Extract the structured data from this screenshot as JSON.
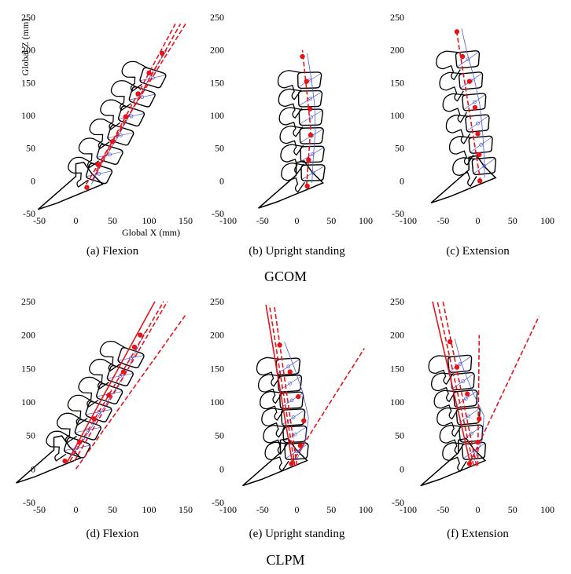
{
  "figure": {
    "group_labels": [
      "GCOM",
      "CLPM"
    ],
    "axis_labels": {
      "x": "Global X (mm)",
      "z": "Global Z (mm)"
    }
  },
  "colors": {
    "spine": "#000000",
    "fit": "#e4141b",
    "aux": "#4a5bd6"
  },
  "chart_data": [
    {
      "id": "a",
      "type": "line",
      "caption": "(a) Flexion",
      "group": "GCOM",
      "posture": "flexion",
      "xlim": [
        -50,
        150
      ],
      "ylim": [
        -50,
        250
      ],
      "xticks": [
        -50,
        0,
        50,
        100,
        150
      ],
      "yticks": [
        -50,
        0,
        50,
        100,
        150,
        200,
        250
      ],
      "centroids": [
        [
          15,
          -10
        ],
        [
          30,
          25
        ],
        [
          50,
          60
        ],
        [
          68,
          98
        ],
        [
          85,
          133
        ],
        [
          100,
          165
        ],
        [
          118,
          195
        ]
      ],
      "fit_lines": [
        {
          "style": "dashed",
          "x": [
            14,
            150
          ],
          "y": [
            -5,
            240
          ]
        },
        {
          "style": "dashed",
          "x": [
            22,
            143
          ],
          "y": [
            0,
            240
          ]
        },
        {
          "style": "dashed",
          "x": [
            28,
            136
          ],
          "y": [
            15,
            240
          ]
        }
      ]
    },
    {
      "id": "b",
      "type": "line",
      "caption": "(b) Upright standing",
      "group": "GCOM",
      "posture": "upright",
      "xlim": [
        -100,
        100
      ],
      "ylim": [
        -50,
        250
      ],
      "xticks": [
        -100,
        -50,
        0,
        50,
        100
      ],
      "yticks": [
        -50,
        0,
        50,
        100,
        150,
        200,
        250
      ],
      "centroids": [
        [
          15,
          -8
        ],
        [
          17,
          32
        ],
        [
          20,
          70
        ],
        [
          19,
          110
        ],
        [
          14,
          152
        ],
        [
          8,
          190
        ]
      ],
      "fit_lines": [
        {
          "style": "dashed",
          "x": [
            14,
            20,
            8
          ],
          "y": [
            -8,
            80,
            200
          ]
        }
      ]
    },
    {
      "id": "c",
      "type": "line",
      "caption": "(c) Extension",
      "group": "GCOM",
      "posture": "extension",
      "xlim": [
        -100,
        100
      ],
      "ylim": [
        -50,
        250
      ],
      "xticks": [
        -100,
        -50,
        0,
        50,
        100
      ],
      "yticks": [
        -50,
        0,
        50,
        100,
        150,
        200,
        250
      ],
      "centroids": [
        [
          3,
          0
        ],
        [
          2,
          40
        ],
        [
          0,
          72
        ],
        [
          -4,
          112
        ],
        [
          -12,
          152
        ],
        [
          -22,
          190
        ],
        [
          -30,
          228
        ]
      ],
      "fit_lines": [
        {
          "style": "dashed",
          "x": [
            4,
            -31
          ],
          "y": [
            -2,
            232
          ]
        }
      ]
    },
    {
      "id": "d",
      "type": "line",
      "caption": "(d) Flexion",
      "group": "CLPM",
      "posture": "flexion",
      "xlim": [
        -50,
        150
      ],
      "ylim": [
        -50,
        250
      ],
      "xticks": [
        -50,
        0,
        50,
        100,
        150
      ],
      "yticks": [
        -50,
        0,
        50,
        100,
        150,
        200,
        250
      ],
      "centroids": [
        [
          -15,
          12
        ],
        [
          5,
          40
        ],
        [
          25,
          75
        ],
        [
          45,
          110
        ],
        [
          65,
          145
        ],
        [
          80,
          182
        ],
        [
          88,
          200
        ]
      ],
      "fit_lines": [
        {
          "style": "solid",
          "x": [
            -12,
            108
          ],
          "y": [
            10,
            250
          ]
        },
        {
          "style": "dashed",
          "x": [
            -8,
            120
          ],
          "y": [
            12,
            250
          ]
        },
        {
          "style": "dashed",
          "x": [
            -2,
            125
          ],
          "y": [
            12,
            250
          ]
        },
        {
          "style": "dashed",
          "x": [
            0,
            150
          ],
          "y": [
            0,
            230
          ]
        }
      ]
    },
    {
      "id": "e",
      "type": "line",
      "caption": "(e) Upright standing",
      "group": "CLPM",
      "posture": "upright",
      "xlim": [
        -100,
        100
      ],
      "ylim": [
        -50,
        250
      ],
      "xticks": [
        -100,
        -50,
        0,
        50,
        100
      ],
      "yticks": [
        -50,
        0,
        50,
        100,
        150,
        200,
        250
      ],
      "centroids": [
        [
          -8,
          8
        ],
        [
          5,
          35
        ],
        [
          10,
          72
        ],
        [
          2,
          108
        ],
        [
          -10,
          145
        ],
        [
          -25,
          185
        ]
      ],
      "fit_lines": [
        {
          "style": "solid",
          "x": [
            -6,
            -45
          ],
          "y": [
            5,
            245
          ]
        },
        {
          "style": "dashed",
          "x": [
            -3,
            -40
          ],
          "y": [
            5,
            245
          ]
        },
        {
          "style": "dashed",
          "x": [
            0,
            -33
          ],
          "y": [
            5,
            245
          ]
        },
        {
          "style": "dashed",
          "x": [
            -8,
            98
          ],
          "y": [
            8,
            180
          ]
        }
      ]
    },
    {
      "id": "f",
      "type": "line",
      "caption": "(f) Extension",
      "group": "CLPM",
      "posture": "extension",
      "xlim": [
        -100,
        100
      ],
      "ylim": [
        -50,
        250
      ],
      "xticks": [
        -100,
        -50,
        0,
        50,
        100
      ],
      "yticks": [
        -50,
        0,
        50,
        100,
        150,
        200,
        250
      ],
      "centroids": [
        [
          -12,
          8
        ],
        [
          0,
          40
        ],
        [
          2,
          75
        ],
        [
          -15,
          112
        ],
        [
          -30,
          152
        ],
        [
          -40,
          190
        ]
      ],
      "fit_lines": [
        {
          "style": "solid",
          "x": [
            -10,
            -65
          ],
          "y": [
            5,
            250
          ]
        },
        {
          "style": "dashed",
          "x": [
            -6,
            -58
          ],
          "y": [
            5,
            250
          ]
        },
        {
          "style": "dashed",
          "x": [
            -2,
            -50
          ],
          "y": [
            5,
            250
          ]
        },
        {
          "style": "dashed",
          "x": [
            0,
            2
          ],
          "y": [
            5,
            200
          ]
        },
        {
          "style": "dashed",
          "x": [
            -12,
            88
          ],
          "y": [
            8,
            228
          ]
        }
      ]
    }
  ]
}
